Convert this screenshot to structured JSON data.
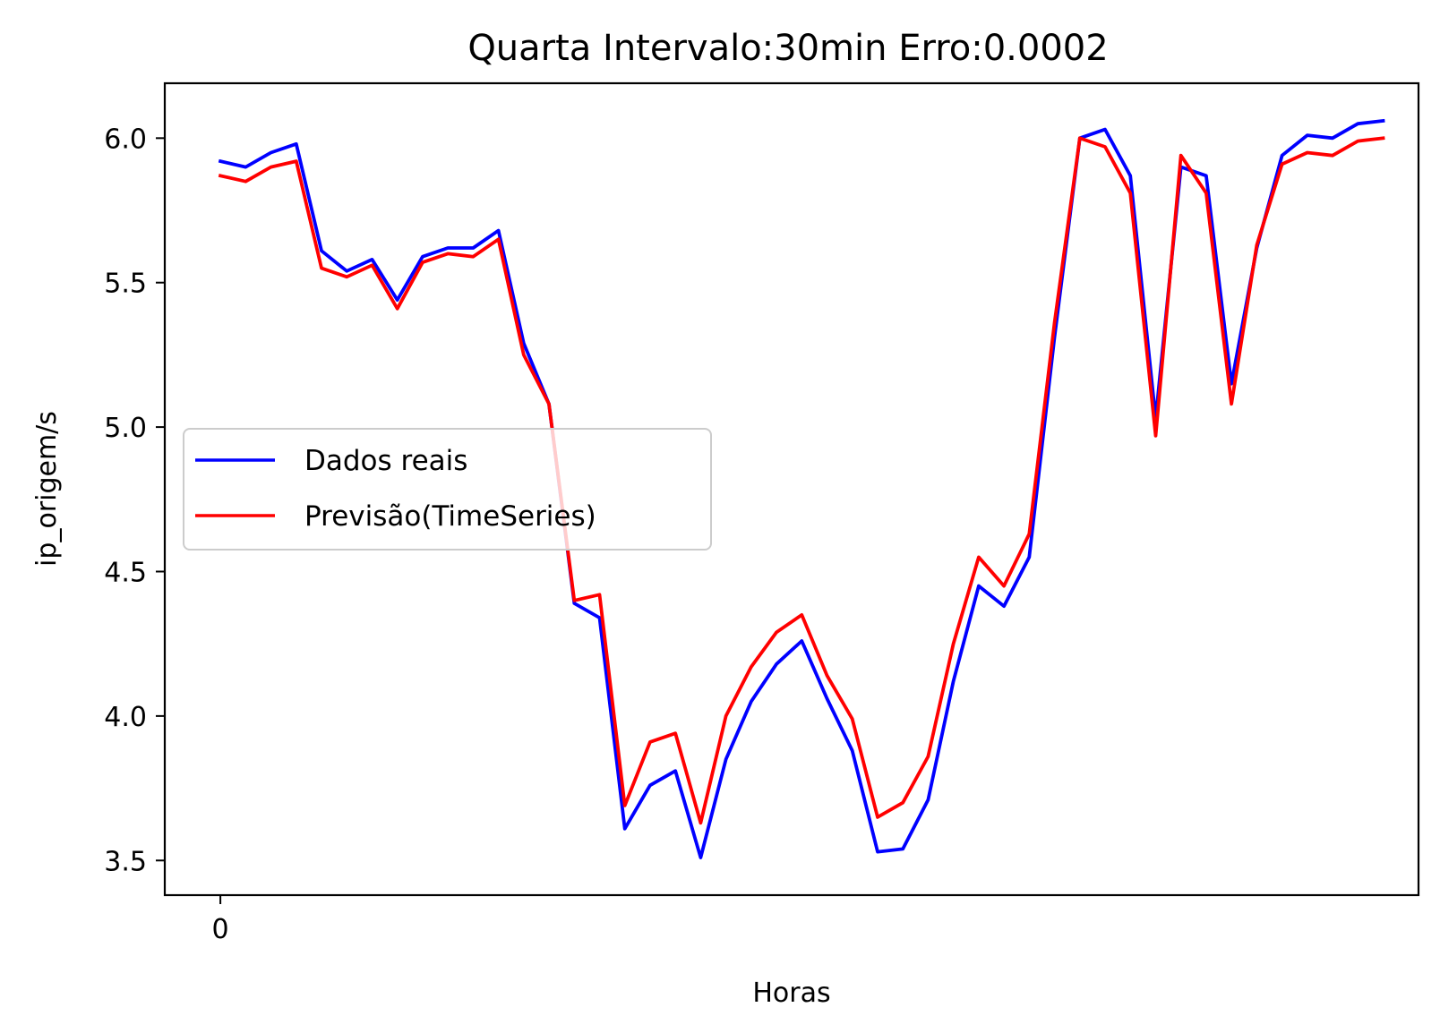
{
  "chart_data": {
    "type": "line",
    "title": "Quarta Intervalo:30min Erro:0.0002",
    "xlabel": "Horas",
    "ylabel": "ip_origem/s",
    "xlim": [
      -2.2,
      47.4
    ],
    "ylim": [
      3.38,
      6.19
    ],
    "x_ticks": [
      0
    ],
    "x_tick_labels": [
      "0"
    ],
    "y_ticks": [
      3.5,
      4.0,
      4.5,
      5.0,
      5.5,
      6.0
    ],
    "y_tick_labels": [
      "3.5",
      "4.0",
      "4.5",
      "5.0",
      "5.5",
      "6.0"
    ],
    "grid": false,
    "legend_position": "center-left",
    "x": [
      0,
      1,
      2,
      3,
      4,
      5,
      6,
      7,
      8,
      9,
      10,
      11,
      12,
      13,
      14,
      15,
      16,
      17,
      18,
      19,
      20,
      21,
      22,
      23,
      24,
      25,
      26,
      27,
      28,
      29,
      30,
      31,
      32,
      33,
      34,
      35,
      36,
      37,
      38,
      39,
      40,
      41,
      42,
      43,
      44,
      45,
      46
    ],
    "series": [
      {
        "name": "Dados reais",
        "color": "#0000ff",
        "values": [
          5.92,
          5.9,
          5.95,
          5.98,
          5.61,
          5.54,
          5.58,
          5.44,
          5.59,
          5.62,
          5.62,
          5.68,
          5.29,
          5.08,
          4.39,
          4.34,
          3.61,
          3.76,
          3.81,
          3.51,
          3.85,
          4.05,
          4.18,
          4.26,
          4.06,
          3.88,
          3.53,
          3.54,
          3.71,
          4.12,
          4.45,
          4.38,
          4.55,
          5.31,
          6.0,
          6.03,
          5.87,
          5.03,
          5.9,
          5.87,
          5.15,
          5.62,
          5.94,
          6.01,
          6.0,
          6.05,
          6.06
        ]
      },
      {
        "name": "Previsão(TimeSeries)",
        "color": "#ff0000",
        "values": [
          5.87,
          5.85,
          5.9,
          5.92,
          5.55,
          5.52,
          5.56,
          5.41,
          5.57,
          5.6,
          5.59,
          5.65,
          5.25,
          5.08,
          4.4,
          4.42,
          3.69,
          3.91,
          3.94,
          3.63,
          4.0,
          4.17,
          4.29,
          4.35,
          4.14,
          3.99,
          3.65,
          3.7,
          3.86,
          4.25,
          4.55,
          4.45,
          4.63,
          5.36,
          6.0,
          5.97,
          5.81,
          4.97,
          5.94,
          5.81,
          5.08,
          5.63,
          5.91,
          5.95,
          5.94,
          5.99,
          6.0
        ]
      }
    ]
  }
}
